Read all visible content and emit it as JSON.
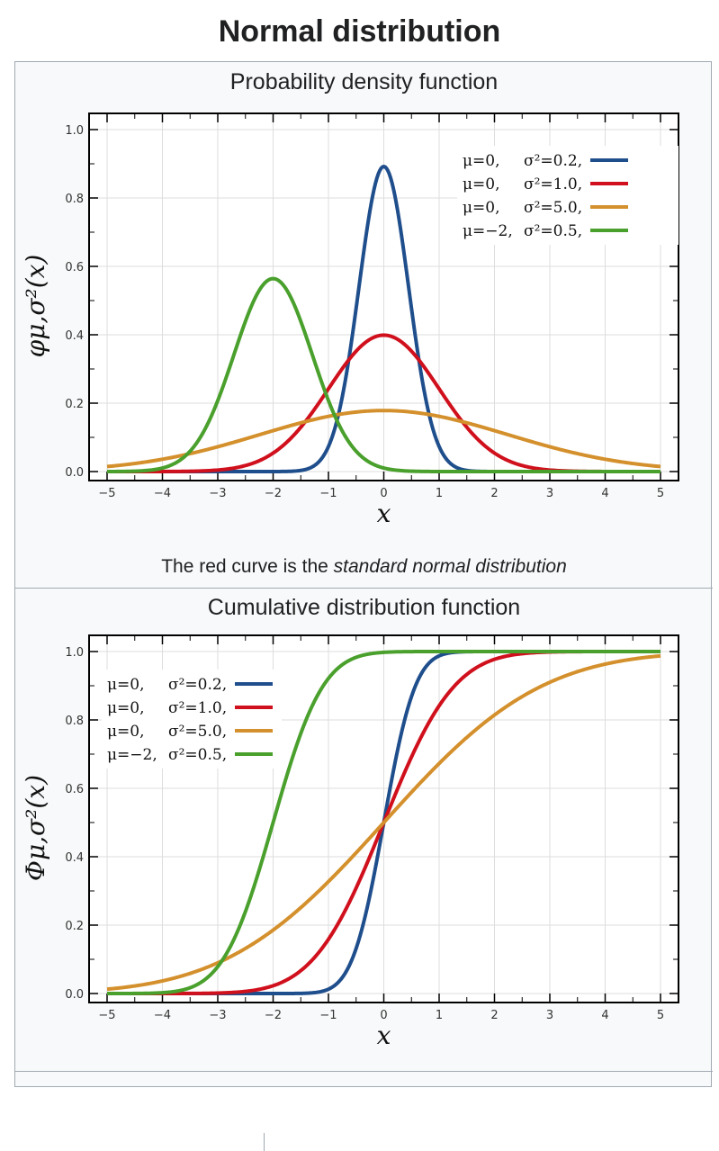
{
  "page": {
    "title": "Normal distribution"
  },
  "infobox": {
    "pdf_heading": "Probability density function",
    "pdf_caption_prefix": "The red curve is the ",
    "pdf_caption_emph": "standard normal distribution",
    "cdf_heading": "Cumulative distribution function"
  },
  "colors": {
    "blue": "#1f4e8c",
    "red": "#d0101c",
    "orange": "#d4902c",
    "green": "#4aa02c",
    "grid": "#dddddd",
    "frame": "#000000"
  },
  "chart_data": [
    {
      "type": "line",
      "name": "pdf",
      "ylabel": "φμ,σ²(x)",
      "xlabel": "x",
      "xlim": [
        -5,
        5
      ],
      "ylim": [
        0,
        1.0
      ],
      "xticks": [
        "−5",
        "−4",
        "−3",
        "−2",
        "−1",
        "0",
        "1",
        "2",
        "3",
        "4",
        "5"
      ],
      "yticks": [
        "0.0",
        "0.2",
        "0.4",
        "0.6",
        "0.8",
        "1.0"
      ],
      "grid": true,
      "legend_position": "top-right",
      "series": [
        {
          "mu": 0,
          "var": 0.2,
          "mu_label": "μ=0,",
          "var_label": "σ²=0.2,",
          "color": "#1f4e8c"
        },
        {
          "mu": 0,
          "var": 1.0,
          "mu_label": "μ=0,",
          "var_label": "σ²=1.0,",
          "color": "#d0101c"
        },
        {
          "mu": 0,
          "var": 5.0,
          "mu_label": "μ=0,",
          "var_label": "σ²=5.0,",
          "color": "#d4902c"
        },
        {
          "mu": -2,
          "var": 0.5,
          "mu_label": "μ=−2,",
          "var_label": "σ²=0.5,",
          "color": "#4aa02c"
        }
      ]
    },
    {
      "type": "line",
      "name": "cdf",
      "ylabel": "Φμ,σ²(x)",
      "xlabel": "x",
      "xlim": [
        -5,
        5
      ],
      "ylim": [
        0,
        1.0
      ],
      "xticks": [
        "−5",
        "−4",
        "−3",
        "−2",
        "−1",
        "0",
        "1",
        "2",
        "3",
        "4",
        "5"
      ],
      "yticks": [
        "0.0",
        "0.2",
        "0.4",
        "0.6",
        "0.8",
        "1.0"
      ],
      "grid": true,
      "legend_position": "top-left",
      "series": [
        {
          "mu": 0,
          "var": 0.2,
          "mu_label": "μ=0,",
          "var_label": "σ²=0.2,",
          "color": "#1f4e8c"
        },
        {
          "mu": 0,
          "var": 1.0,
          "mu_label": "μ=0,",
          "var_label": "σ²=1.0,",
          "color": "#d0101c"
        },
        {
          "mu": 0,
          "var": 5.0,
          "mu_label": "μ=0,",
          "var_label": "σ²=5.0,",
          "color": "#d4902c"
        },
        {
          "mu": -2,
          "var": 0.5,
          "mu_label": "μ=−2,",
          "var_label": "σ²=0.5,",
          "color": "#4aa02c"
        }
      ]
    }
  ]
}
